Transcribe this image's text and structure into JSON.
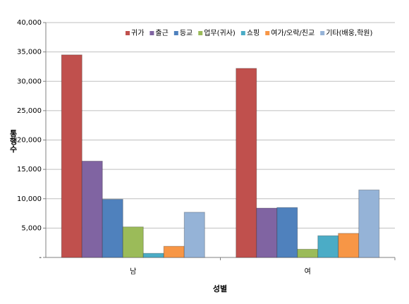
{
  "chart_data": {
    "type": "bar",
    "x_label": "성별",
    "y_label": "통행수",
    "categories": [
      "남",
      "여"
    ],
    "series": [
      {
        "name": "귀가",
        "color": "#c0504d",
        "values": [
          34500,
          32200
        ]
      },
      {
        "name": "출근",
        "color": "#8064a2",
        "values": [
          16400,
          8400
        ]
      },
      {
        "name": "등교",
        "color": "#4f81bd",
        "values": [
          9900,
          8500
        ]
      },
      {
        "name": "업무(귀사)",
        "color": "#9bbb59",
        "values": [
          5200,
          1400
        ]
      },
      {
        "name": "쇼핑",
        "color": "#4bacc6",
        "values": [
          700,
          3700
        ]
      },
      {
        "name": "여가/오락/친교",
        "color": "#f79646",
        "values": [
          1900,
          4100
        ]
      },
      {
        "name": "기타(배웅,학원)",
        "color": "#95b3d7",
        "values": [
          7700,
          11500
        ]
      }
    ],
    "ylim": [
      0,
      40000
    ],
    "yticks": [
      {
        "value": 0,
        "label": "-"
      },
      {
        "value": 5000,
        "label": "5,000"
      },
      {
        "value": 10000,
        "label": "10,000"
      },
      {
        "value": 15000,
        "label": "15,000"
      },
      {
        "value": 20000,
        "label": "20,000"
      },
      {
        "value": 25000,
        "label": "25,000"
      },
      {
        "value": 30000,
        "label": "30,000"
      },
      {
        "value": 35000,
        "label": "35,000"
      },
      {
        "value": 40000,
        "label": "40,000"
      }
    ],
    "grid": true,
    "legend": "top-right"
  }
}
